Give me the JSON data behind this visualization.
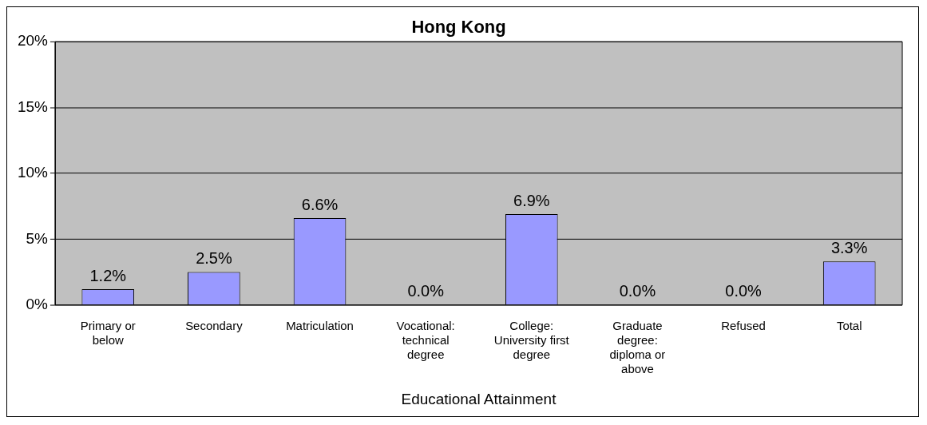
{
  "chart_data": {
    "type": "bar",
    "title": "Hong Kong",
    "xlabel": "Educational Attainment",
    "categories": [
      "Primary or below",
      "Secondary",
      "Matriculation",
      "Vocational: technical degree",
      "College: University first degree",
      "Graduate degree: diploma or above",
      "Refused",
      "Total"
    ],
    "values": [
      1.2,
      2.5,
      6.6,
      0.0,
      6.9,
      0.0,
      0.0,
      3.3
    ],
    "value_labels": [
      "1.2%",
      "2.5%",
      "6.6%",
      "0.0%",
      "6.9%",
      "0.0%",
      "0.0%",
      "3.3%"
    ],
    "color": "#9999ff",
    "ylim": [
      0,
      20
    ],
    "yticks": [
      {
        "value": 0,
        "label": "0%"
      },
      {
        "value": 5,
        "label": "5%"
      },
      {
        "value": 10,
        "label": "10%"
      },
      {
        "value": 15,
        "label": "15%"
      },
      {
        "value": 20,
        "label": "20%"
      }
    ],
    "grid": "y",
    "legend": false
  }
}
